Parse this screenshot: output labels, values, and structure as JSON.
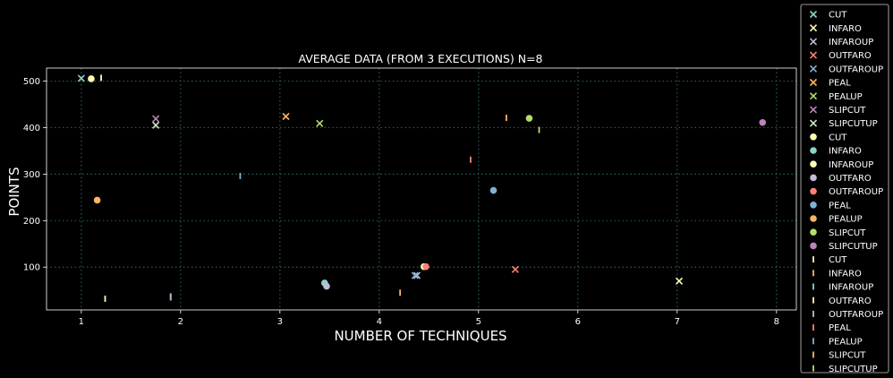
{
  "chart_data": {
    "type": "scatter",
    "title": "AVERAGE DATA (FROM 3 EXECUTIONS) N=8",
    "xlabel": "NUMBER OF TECHNIQUES",
    "ylabel": "POINTS",
    "xlim": [
      0.65,
      8.2
    ],
    "ylim": [
      8,
      528
    ],
    "xticks": [
      1,
      2,
      3,
      4,
      5,
      6,
      7,
      8
    ],
    "yticks": [
      100,
      200,
      300,
      400,
      500
    ],
    "grid": true,
    "legend_position": "right-outside",
    "palette": {
      "c0": "#8dd3c7",
      "c1": "#feffb3",
      "c2": "#bfbbd9",
      "c3": "#fa8174",
      "c4": "#81b1d2",
      "c5": "#fdb462",
      "c6": "#b3de69",
      "c7": "#bc82bd",
      "c8": "#ccebc4"
    },
    "series": [
      {
        "name": "CUT",
        "marker": "x",
        "color": "c0",
        "points": [
          [
            1.0,
            506
          ]
        ]
      },
      {
        "name": "INFARO",
        "marker": "x",
        "color": "c1",
        "points": [
          [
            7.02,
            70
          ]
        ]
      },
      {
        "name": "INFAROUP",
        "marker": "x",
        "color": "c2",
        "points": [
          [
            4.38,
            82
          ]
        ]
      },
      {
        "name": "OUTFARO",
        "marker": "x",
        "color": "c3",
        "points": [
          [
            5.37,
            95
          ]
        ]
      },
      {
        "name": "OUTFAROUP",
        "marker": "x",
        "color": "c4",
        "points": [
          [
            4.36,
            82
          ]
        ]
      },
      {
        "name": "PEAL",
        "marker": "x",
        "color": "c5",
        "points": [
          [
            3.06,
            424
          ]
        ]
      },
      {
        "name": "PEALUP",
        "marker": "x",
        "color": "c6",
        "points": [
          [
            3.4,
            409
          ]
        ]
      },
      {
        "name": "SLIPCUT",
        "marker": "x",
        "color": "c7",
        "points": [
          [
            1.75,
            419
          ]
        ]
      },
      {
        "name": "SLIPCUTUP",
        "marker": "x",
        "color": "c8",
        "points": [
          [
            1.75,
            405
          ]
        ]
      },
      {
        "name": "CUT",
        "marker": "o",
        "color": "c1",
        "points": [
          [
            1.1,
            505
          ]
        ]
      },
      {
        "name": "INFARO",
        "marker": "o",
        "color": "c0",
        "points": [
          [
            3.45,
            66
          ]
        ]
      },
      {
        "name": "INFAROUP",
        "marker": "o",
        "color": "c1",
        "points": [
          [
            4.45,
            101
          ]
        ]
      },
      {
        "name": "OUTFARO",
        "marker": "o",
        "color": "c2",
        "points": [
          [
            3.47,
            59
          ]
        ]
      },
      {
        "name": "OUTFAROUP",
        "marker": "o",
        "color": "c3",
        "points": [
          [
            4.47,
            101
          ]
        ]
      },
      {
        "name": "PEAL",
        "marker": "o",
        "color": "c4",
        "points": [
          [
            5.15,
            265
          ]
        ]
      },
      {
        "name": "PEALUP",
        "marker": "o",
        "color": "c5",
        "points": [
          [
            1.16,
            244
          ]
        ]
      },
      {
        "name": "SLIPCUT",
        "marker": "o",
        "color": "c6",
        "points": [
          [
            5.51,
            420
          ]
        ]
      },
      {
        "name": "SLIPCUTUP",
        "marker": "o",
        "color": "c7",
        "points": [
          [
            7.86,
            411
          ]
        ]
      },
      {
        "name": "CUT",
        "marker": "|",
        "color": "c1",
        "points": [
          [
            1.2,
            507
          ]
        ]
      },
      {
        "name": "INFARO",
        "marker": "|",
        "color": "c5",
        "points": [
          [
            4.21,
            45
          ]
        ]
      },
      {
        "name": "INFAROUP",
        "marker": "|",
        "color": "c0",
        "points": [
          [
            1.9,
            37
          ]
        ]
      },
      {
        "name": "OUTFARO",
        "marker": "|",
        "color": "c1",
        "points": [
          [
            1.24,
            32
          ]
        ]
      },
      {
        "name": "OUTFAROUP",
        "marker": "|",
        "color": "c2",
        "points": [
          [
            1.9,
            35
          ]
        ]
      },
      {
        "name": "PEAL",
        "marker": "|",
        "color": "c3",
        "points": [
          [
            4.92,
            331
          ]
        ]
      },
      {
        "name": "PEALUP",
        "marker": "|",
        "color": "c4",
        "points": [
          [
            2.6,
            296
          ]
        ]
      },
      {
        "name": "SLIPCUT",
        "marker": "|",
        "color": "c5",
        "points": [
          [
            5.28,
            421
          ]
        ]
      },
      {
        "name": "SLIPCUTUP",
        "marker": "|",
        "color": "c6",
        "points": [
          [
            5.61,
            395
          ]
        ]
      }
    ]
  }
}
